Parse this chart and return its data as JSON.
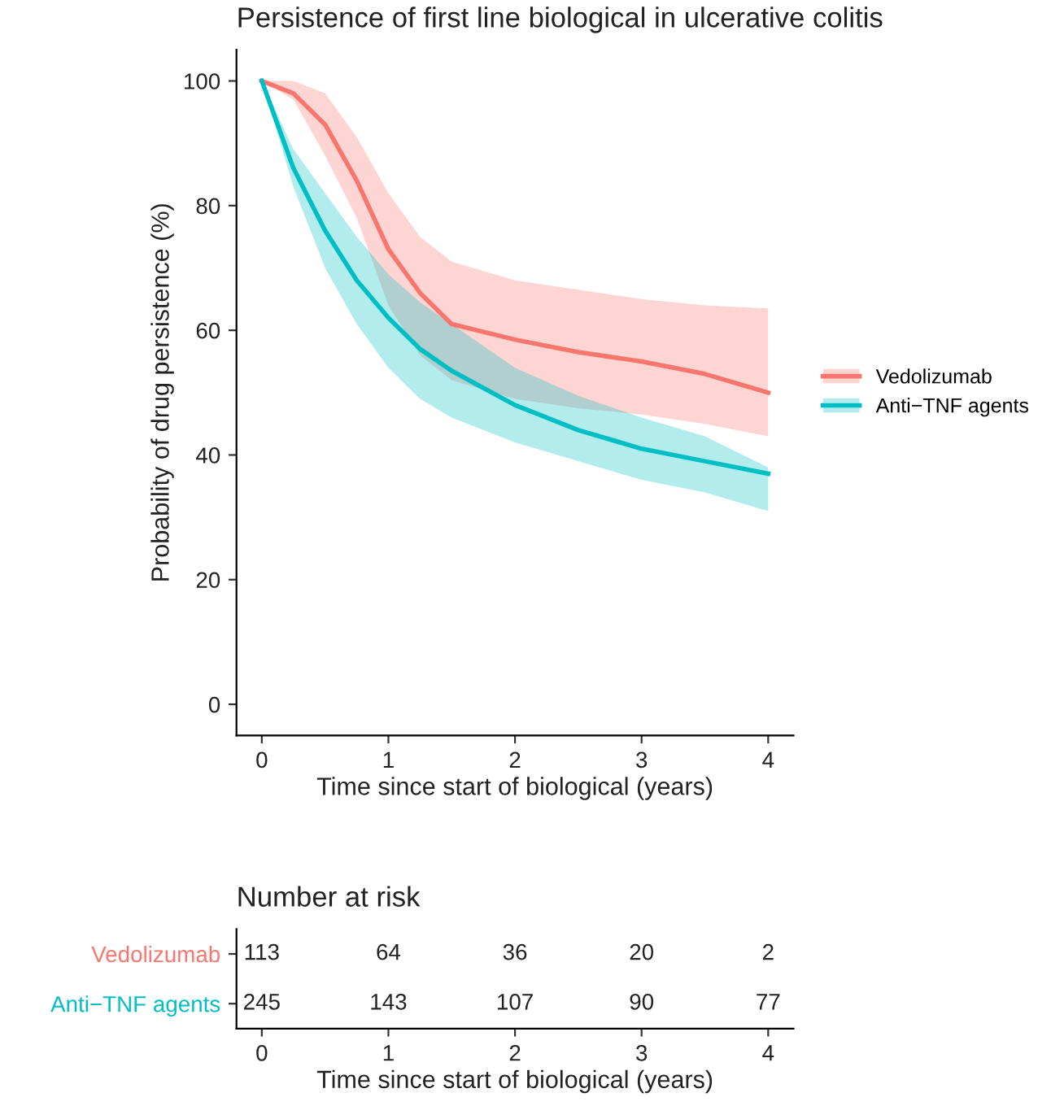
{
  "chart_data": [
    {
      "type": "line",
      "title": "Persistence of first line biological in ulcerative colitis",
      "xlabel": "Time since start of biological (years)",
      "ylabel": "Probability of drug persistence (%)",
      "x": [
        0,
        0.25,
        0.5,
        0.75,
        1,
        1.25,
        1.5,
        2,
        2.5,
        3,
        3.5,
        4
      ],
      "series": [
        {
          "name": "Vedolizumab",
          "color": "#f8766d",
          "values": [
            100,
            98,
            93,
            84,
            73,
            66,
            61,
            58.5,
            56.5,
            55,
            53,
            50
          ],
          "lower": [
            100,
            97,
            88,
            78,
            64,
            56,
            52,
            49,
            47.5,
            46.5,
            45,
            43
          ],
          "upper": [
            100,
            100,
            98,
            91,
            82,
            75,
            71,
            68,
            66.5,
            65,
            64,
            63.5
          ]
        },
        {
          "name": "Anti−TNF agents",
          "color": "#00bfc4",
          "values": [
            100,
            86,
            76,
            68,
            62,
            57,
            53.5,
            48,
            44,
            41,
            39,
            37
          ],
          "lower": [
            100,
            83,
            70,
            61,
            54,
            49,
            46,
            42,
            39,
            36,
            34,
            31
          ],
          "upper": [
            100,
            89,
            82,
            75,
            69,
            64.5,
            61,
            54,
            49.5,
            46,
            43,
            38
          ]
        }
      ],
      "xlim": [
        -0.2,
        4.2
      ],
      "xticks": [
        0,
        1,
        2,
        3,
        4
      ],
      "ylim": [
        -5,
        105
      ],
      "yticks": [
        0,
        20,
        40,
        60,
        80,
        100
      ],
      "legend": "right",
      "line_style": "solid"
    },
    {
      "type": "heatmap",
      "title": "Number at risk",
      "xlabel": "Time since start of biological (years)",
      "categories": [
        "0",
        "1",
        "2",
        "3",
        "4"
      ],
      "y_categories": [
        "Vedolizumab",
        "Anti−TNF agents"
      ],
      "colors": [
        "#f8766d",
        "#00bfc4"
      ],
      "cells": [
        [
          113,
          64,
          36,
          20,
          2
        ],
        [
          245,
          143,
          107,
          90,
          77
        ]
      ],
      "data_labels": true
    }
  ]
}
